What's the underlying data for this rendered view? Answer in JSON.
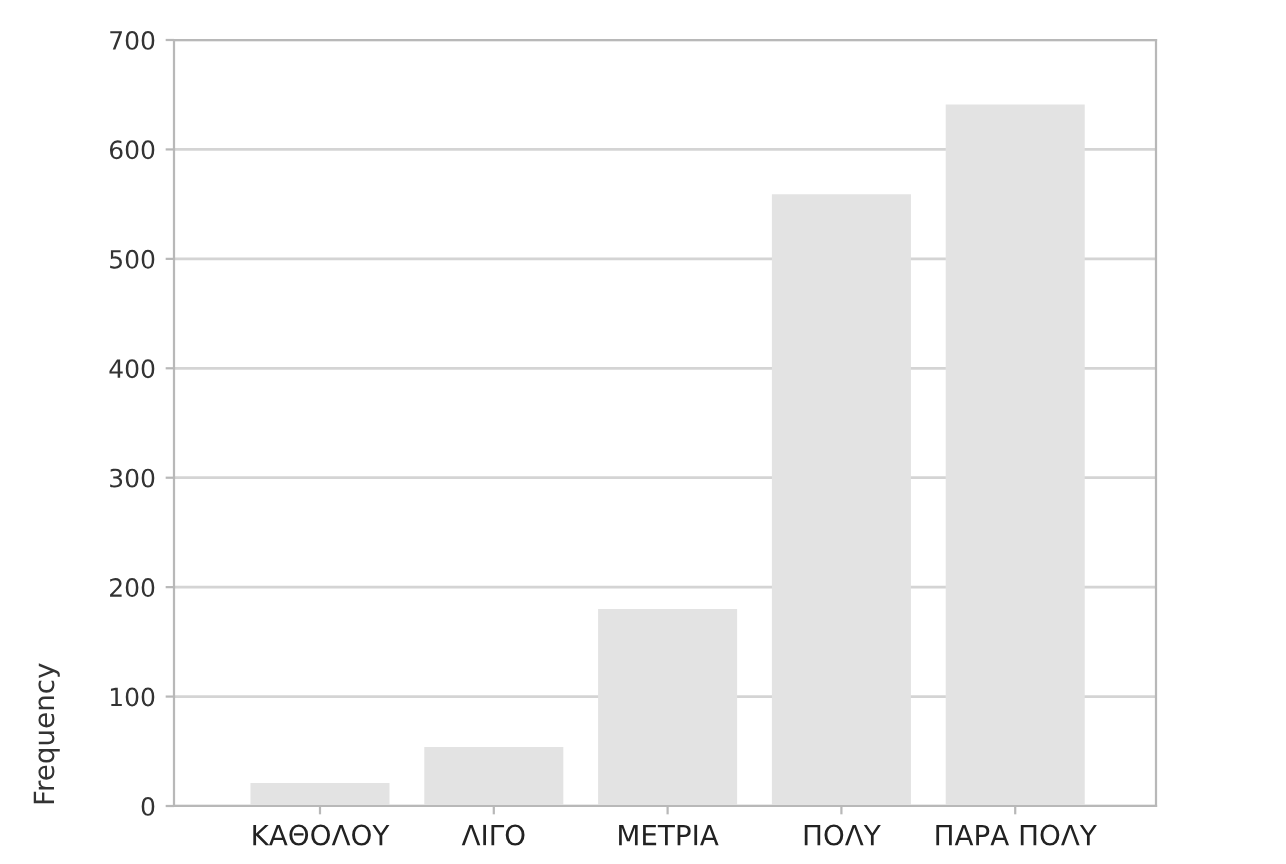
{
  "chart_data": {
    "type": "bar",
    "ylabel": "Frequency",
    "categories": [
      "ΚΑΘΟΛΟΥ",
      "ΛΙΓΟ",
      "ΜΕΤΡΙΑ",
      "ΠΟΛΥ",
      "ΠΑΡΑ ΠΟΛΥ"
    ],
    "values": [
      21,
      54,
      180,
      559,
      641
    ],
    "color": "#e3e3e3",
    "ylim": [
      0,
      700
    ],
    "yticks": [
      0,
      100,
      200,
      300,
      400,
      500,
      600,
      700
    ],
    "grid": "y"
  }
}
